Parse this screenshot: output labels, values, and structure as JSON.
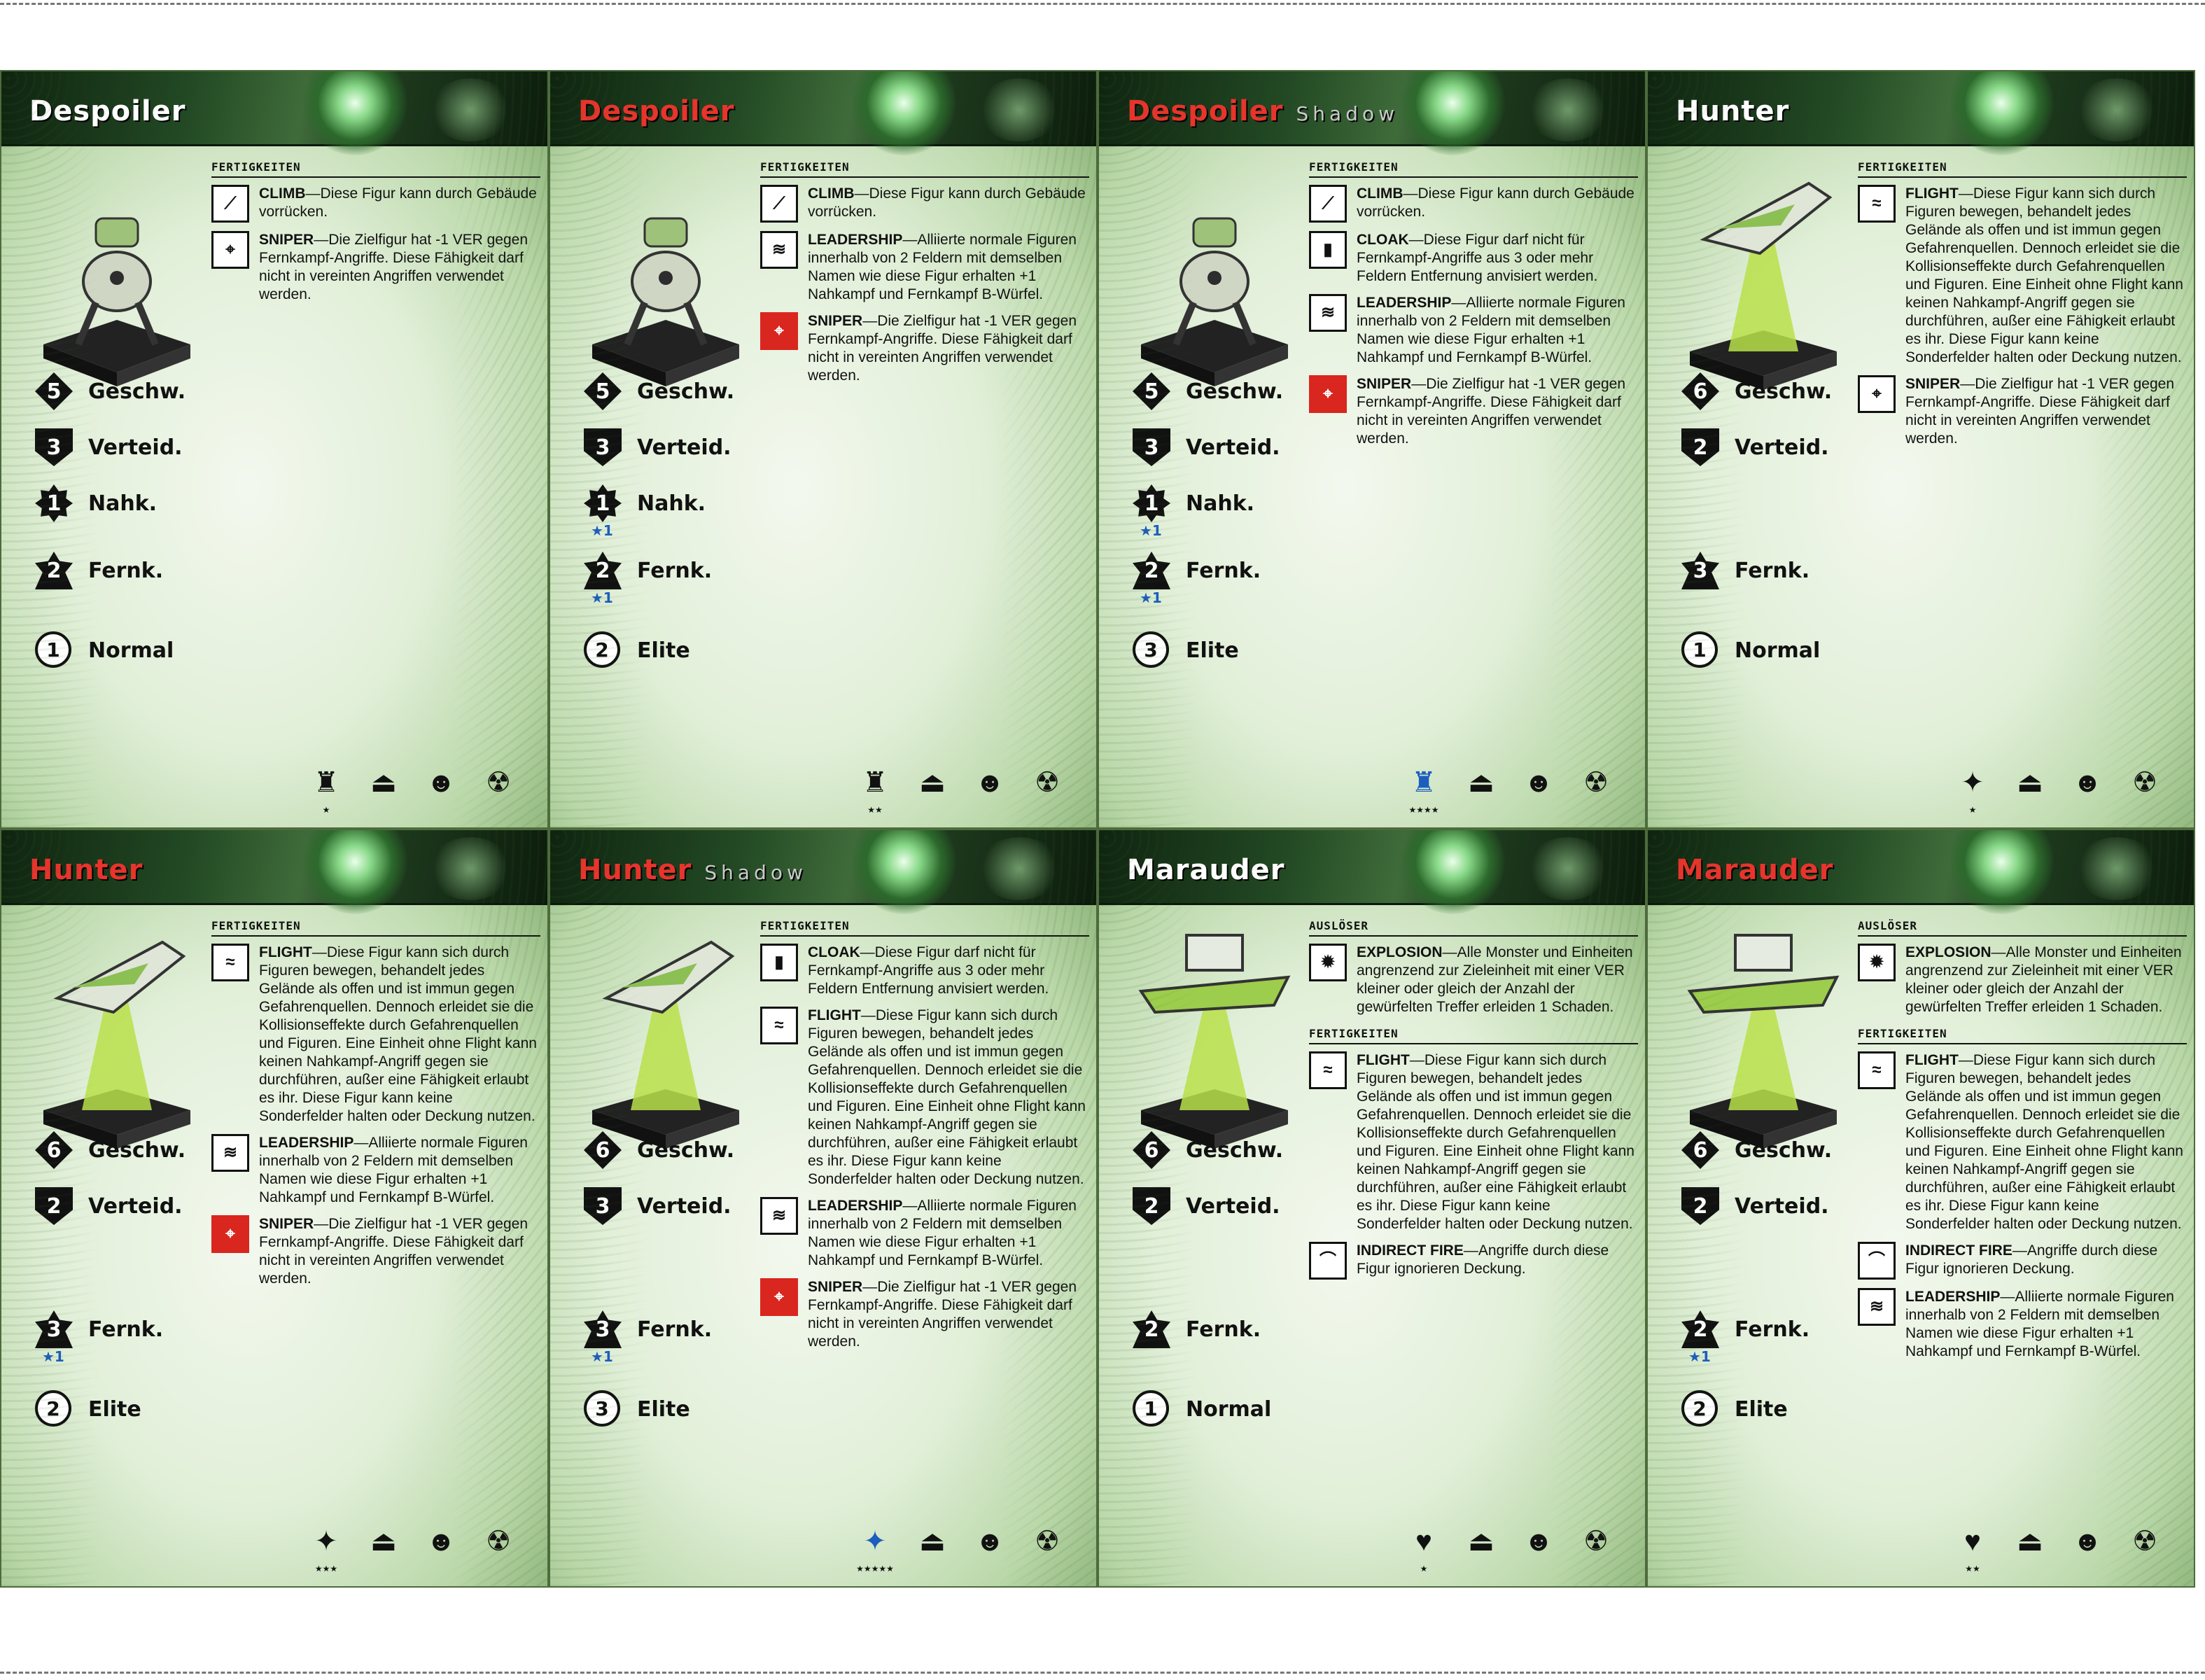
{
  "stat_labels": {
    "speed": "Geschw.",
    "defense": "Verteid.",
    "melee": "Nahk.",
    "ranged": "Fernk."
  },
  "section_labels": {
    "abilities": "FERTIGKEITEN",
    "triggers": "AUSLÖSER"
  },
  "cards": [
    {
      "name": "Despoiler",
      "name_color": "#ffffff",
      "tag": "",
      "speed": "5",
      "defense": "3",
      "melee": "1",
      "melee_bonus": "",
      "ranged": "2",
      "ranged_bonus": "",
      "rank_value": "1",
      "rank_label": "Normal",
      "abilities": [
        {
          "name": "CLIMB",
          "text": "—Diese Figur kann durch Gebäude vorrücken."
        },
        {
          "name": "SNIPER",
          "text": "—Die Zielfigur hat -1 VER gegen Fernkampf-Angriffe. Diese Fähigkeit darf nicht in vereinten Angriffen verwendet werden."
        }
      ],
      "stars": "★"
    },
    {
      "name": "Despoiler",
      "name_color": "#e8342c",
      "tag": "",
      "speed": "5",
      "defense": "3",
      "melee": "1",
      "melee_bonus": "★1",
      "ranged": "2",
      "ranged_bonus": "★1",
      "rank_value": "2",
      "rank_label": "Elite",
      "abilities": [
        {
          "name": "CLIMB",
          "text": "—Diese Figur kann durch Gebäude vorrücken."
        },
        {
          "name": "LEADERSHIP",
          "text": "—Alliierte normale Figuren innerhalb von 2 Feldern mit demselben Namen wie diese Figur erhalten +1 Nahkampf und Fernkampf B-Würfel."
        },
        {
          "name": "SNIPER",
          "text": "—Die Zielfigur hat -1 VER gegen Fernkampf-Angriffe. Diese Fähigkeit darf nicht in vereinten Angriffen verwendet werden."
        }
      ],
      "stars": "★★"
    },
    {
      "name": "Despoiler",
      "name_color": "#e8342c",
      "tag": "Shadow",
      "speed": "5",
      "defense": "3",
      "melee": "1",
      "melee_bonus": "★1",
      "ranged": "2",
      "ranged_bonus": "★1",
      "rank_value": "3",
      "rank_label": "Elite",
      "abilities": [
        {
          "name": "CLIMB",
          "text": "—Diese Figur kann durch Gebäude vorrücken."
        },
        {
          "name": "CLOAK",
          "text": "—Diese Figur darf nicht für Fernkampf-Angriffe aus 3 oder mehr Feldern Entfernung anvisiert werden."
        },
        {
          "name": "LEADERSHIP",
          "text": "—Alliierte normale Figuren innerhalb von 2 Feldern mit demselben Namen wie diese Figur erhalten +1 Nahkampf und Fernkampf B-Würfel."
        },
        {
          "name": "SNIPER",
          "text": "—Die Zielfigur hat -1 VER gegen Fernkampf-Angriffe. Diese Fähigkeit darf nicht in vereinten Angriffen verwendet werden."
        }
      ],
      "stars": "★★★★"
    },
    {
      "name": "Hunter",
      "name_color": "#ffffff",
      "tag": "",
      "speed": "6",
      "defense": "2",
      "melee": "",
      "melee_bonus": "",
      "ranged": "3",
      "ranged_bonus": "",
      "rank_value": "1",
      "rank_label": "Normal",
      "abilities": [
        {
          "name": "FLIGHT",
          "text": "—Diese Figur kann sich durch Figuren bewegen, behandelt jedes Gelände als offen und ist immun gegen Gefahrenquellen. Dennoch erleidet sie die Kollisionseffekte durch Gefahrenquellen und Figuren. Eine Einheit ohne Flight kann keinen Nahkampf-Angriff gegen sie durchführen, außer eine Fähigkeit erlaubt es ihr. Diese Figur kann keine Sonderfelder halten oder Deckung nutzen."
        },
        {
          "name": "SNIPER",
          "text": "—Die Zielfigur hat -1 VER gegen Fernkampf-Angriffe. Diese Fähigkeit darf nicht in vereinten Angriffen verwendet werden."
        }
      ],
      "stars": "★"
    },
    {
      "name": "Hunter",
      "name_color": "#e8342c",
      "tag": "",
      "speed": "6",
      "defense": "2",
      "melee": "",
      "melee_bonus": "",
      "ranged": "3",
      "ranged_bonus": "★1",
      "rank_value": "2",
      "rank_label": "Elite",
      "abilities": [
        {
          "name": "FLIGHT",
          "text": "—Diese Figur kann sich durch Figuren bewegen, behandelt jedes Gelände als offen und ist immun gegen Gefahrenquellen. Dennoch erleidet sie die Kollisionseffekte durch Gefahrenquellen und Figuren. Eine Einheit ohne Flight kann keinen Nahkampf-Angriff gegen sie durchführen, außer eine Fähigkeit erlaubt es ihr. Diese Figur kann keine Sonderfelder halten oder Deckung nutzen."
        },
        {
          "name": "LEADERSHIP",
          "text": "—Alliierte normale Figuren innerhalb von 2 Feldern mit demselben Namen wie diese Figur erhalten +1 Nahkampf und Fernkampf B-Würfel."
        },
        {
          "name": "SNIPER",
          "text": "—Die Zielfigur hat -1 VER gegen Fernkampf-Angriffe. Diese Fähigkeit darf nicht in vereinten Angriffen verwendet werden."
        }
      ],
      "stars": "★★★"
    },
    {
      "name": "Hunter",
      "name_color": "#e8342c",
      "tag": "Shadow",
      "speed": "6",
      "defense": "3",
      "melee": "",
      "melee_bonus": "",
      "ranged": "3",
      "ranged_bonus": "★1",
      "rank_value": "3",
      "rank_label": "Elite",
      "abilities": [
        {
          "name": "CLOAK",
          "text": "—Diese Figur darf nicht für Fernkampf-Angriffe aus 3 oder mehr Feldern Entfernung anvisiert werden."
        },
        {
          "name": "FLIGHT",
          "text": "—Diese Figur kann sich durch Figuren bewegen, behandelt jedes Gelände als offen und ist immun gegen Gefahrenquellen. Dennoch erleidet sie die Kollisionseffekte durch Gefahrenquellen und Figuren. Eine Einheit ohne Flight kann keinen Nahkampf-Angriff gegen sie durchführen, außer eine Fähigkeit erlaubt es ihr. Diese Figur kann keine Sonderfelder halten oder Deckung nutzen."
        },
        {
          "name": "LEADERSHIP",
          "text": "—Alliierte normale Figuren innerhalb von 2 Feldern mit demselben Namen wie diese Figur erhalten +1 Nahkampf und Fernkampf B-Würfel."
        },
        {
          "name": "SNIPER",
          "text": "—Die Zielfigur hat -1 VER gegen Fernkampf-Angriffe. Diese Fähigkeit darf nicht in vereinten Angriffen verwendet werden."
        }
      ],
      "stars": "★★★★★"
    },
    {
      "name": "Marauder",
      "name_color": "#ffffff",
      "tag": "",
      "speed": "6",
      "defense": "2",
      "melee": "",
      "melee_bonus": "",
      "ranged": "2",
      "ranged_bonus": "",
      "rank_value": "1",
      "rank_label": "Normal",
      "trigger": {
        "name": "EXPLOSION",
        "text": "—Alle Monster und Einheiten angrenzend zur Zieleinheit mit einer VER kleiner oder gleich der Anzahl der gewürfelten Treffer erleiden 1 Schaden."
      },
      "abilities": [
        {
          "name": "FLIGHT",
          "text": "—Diese Figur kann sich durch Figuren bewegen, behandelt jedes Gelände als offen und ist immun gegen Gefahrenquellen. Dennoch erleidet sie die Kollisionseffekte durch Gefahrenquellen und Figuren. Eine Einheit ohne Flight kann keinen Nahkampf-Angriff gegen sie durchführen, außer eine Fähigkeit erlaubt es ihr. Diese Figur kann keine Sonderfelder halten oder Deckung nutzen."
        },
        {
          "name": "INDIRECT FIRE",
          "text": "—Angriffe durch diese Figur ignorieren Deckung."
        }
      ],
      "stars": "★"
    },
    {
      "name": "Marauder",
      "name_color": "#e8342c",
      "tag": "",
      "speed": "6",
      "defense": "2",
      "melee": "",
      "melee_bonus": "",
      "ranged": "2",
      "ranged_bonus": "★1",
      "rank_value": "2",
      "rank_label": "Elite",
      "trigger": {
        "name": "EXPLOSION",
        "text": "—Alle Monster und Einheiten angrenzend zur Zieleinheit mit einer VER kleiner oder gleich der Anzahl der gewürfelten Treffer erleiden 1 Schaden."
      },
      "abilities": [
        {
          "name": "FLIGHT",
          "text": "—Diese Figur kann sich durch Figuren bewegen, behandelt jedes Gelände als offen und ist immun gegen Gefahrenquellen. Dennoch erleidet sie die Kollisionseffekte durch Gefahrenquellen und Figuren. Eine Einheit ohne Flight kann keinen Nahkampf-Angriff gegen sie durchführen, außer eine Fähigkeit erlaubt es ihr. Diese Figur kann keine Sonderfelder halten oder Deckung nutzen."
        },
        {
          "name": "INDIRECT FIRE",
          "text": "—Angriffe durch diese Figur ignorieren Deckung."
        },
        {
          "name": "LEADERSHIP",
          "text": "—Alliierte normale Figuren innerhalb von 2 Feldern mit demselben Namen wie diese Figur erhalten +1 Nahkampf und Fernkampf B-Würfel."
        }
      ],
      "stars": "★★"
    }
  ]
}
